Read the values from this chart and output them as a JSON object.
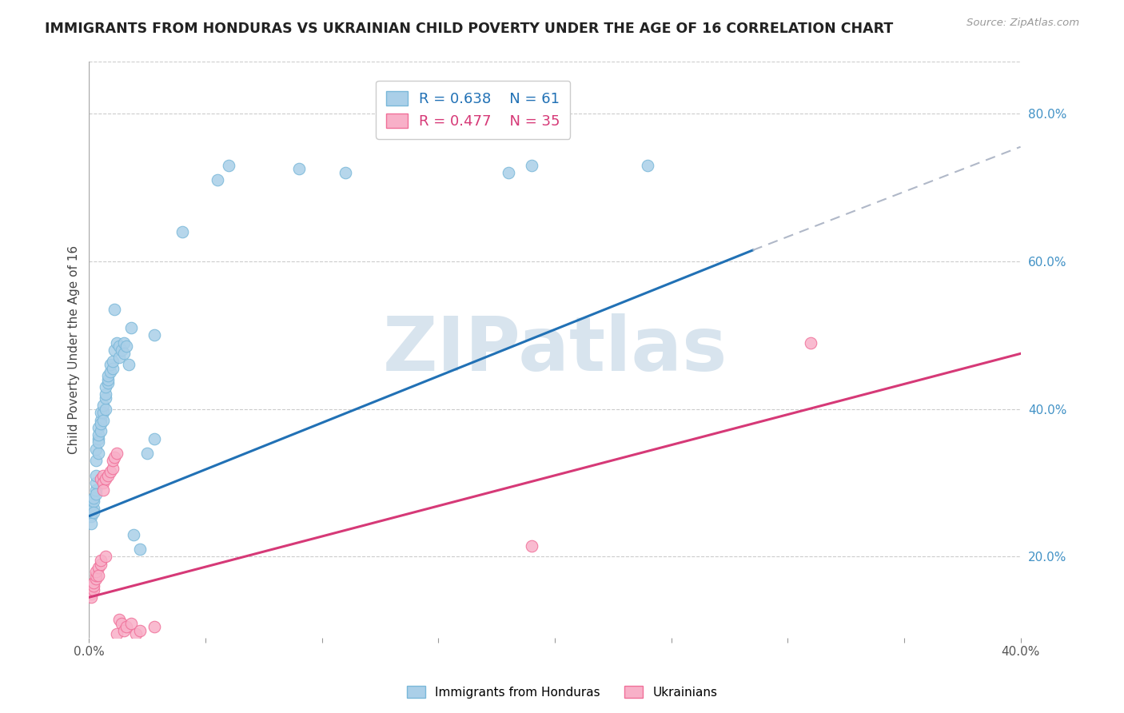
{
  "title": "IMMIGRANTS FROM HONDURAS VS UKRAINIAN CHILD POVERTY UNDER THE AGE OF 16 CORRELATION CHART",
  "source": "Source: ZipAtlas.com",
  "ylabel": "Child Poverty Under the Age of 16",
  "xlim": [
    0.0,
    0.4
  ],
  "ylim": [
    0.09,
    0.87
  ],
  "xticks": [
    0.0,
    0.05,
    0.1,
    0.15,
    0.2,
    0.25,
    0.3,
    0.35,
    0.4
  ],
  "xticklabels": [
    "0.0%",
    "",
    "",
    "",
    "",
    "",
    "",
    "",
    "40.0%"
  ],
  "yticks_right": [
    0.2,
    0.4,
    0.6,
    0.8
  ],
  "ytick_right_labels": [
    "20.0%",
    "40.0%",
    "60.0%",
    "80.0%"
  ],
  "blue_color": "#7ab8d9",
  "blue_fill": "#aacfe8",
  "pink_color": "#f07099",
  "pink_fill": "#f8b0c8",
  "blue_line_color": "#2171b5",
  "pink_line_color": "#d63977",
  "dashed_line_color": "#b0b8c8",
  "legend_R1": "R = 0.638",
  "legend_N1": "N = 61",
  "legend_R2": "R = 0.477",
  "legend_N2": "N = 35",
  "watermark": "ZIPatlas",
  "watermark_color": "#d8e4ee",
  "background_color": "#ffffff",
  "blue_scatter": [
    [
      0.001,
      0.26
    ],
    [
      0.001,
      0.27
    ],
    [
      0.001,
      0.255
    ],
    [
      0.001,
      0.245
    ],
    [
      0.002,
      0.265
    ],
    [
      0.002,
      0.275
    ],
    [
      0.002,
      0.28
    ],
    [
      0.002,
      0.26
    ],
    [
      0.003,
      0.29
    ],
    [
      0.003,
      0.3
    ],
    [
      0.003,
      0.31
    ],
    [
      0.003,
      0.285
    ],
    [
      0.003,
      0.33
    ],
    [
      0.003,
      0.345
    ],
    [
      0.004,
      0.36
    ],
    [
      0.004,
      0.34
    ],
    [
      0.004,
      0.375
    ],
    [
      0.004,
      0.355
    ],
    [
      0.004,
      0.365
    ],
    [
      0.005,
      0.37
    ],
    [
      0.005,
      0.385
    ],
    [
      0.005,
      0.395
    ],
    [
      0.005,
      0.38
    ],
    [
      0.006,
      0.395
    ],
    [
      0.006,
      0.405
    ],
    [
      0.006,
      0.385
    ],
    [
      0.007,
      0.4
    ],
    [
      0.007,
      0.415
    ],
    [
      0.007,
      0.42
    ],
    [
      0.007,
      0.43
    ],
    [
      0.008,
      0.435
    ],
    [
      0.008,
      0.44
    ],
    [
      0.008,
      0.445
    ],
    [
      0.009,
      0.45
    ],
    [
      0.009,
      0.46
    ],
    [
      0.01,
      0.455
    ],
    [
      0.01,
      0.465
    ],
    [
      0.011,
      0.535
    ],
    [
      0.011,
      0.48
    ],
    [
      0.012,
      0.49
    ],
    [
      0.013,
      0.485
    ],
    [
      0.013,
      0.47
    ],
    [
      0.014,
      0.48
    ],
    [
      0.015,
      0.49
    ],
    [
      0.015,
      0.475
    ],
    [
      0.016,
      0.485
    ],
    [
      0.017,
      0.46
    ],
    [
      0.018,
      0.51
    ],
    [
      0.019,
      0.23
    ],
    [
      0.022,
      0.21
    ],
    [
      0.025,
      0.34
    ],
    [
      0.028,
      0.5
    ],
    [
      0.028,
      0.36
    ],
    [
      0.04,
      0.64
    ],
    [
      0.055,
      0.71
    ],
    [
      0.06,
      0.73
    ],
    [
      0.09,
      0.725
    ],
    [
      0.11,
      0.72
    ],
    [
      0.18,
      0.72
    ],
    [
      0.19,
      0.73
    ],
    [
      0.24,
      0.73
    ]
  ],
  "pink_scatter": [
    [
      0.001,
      0.15
    ],
    [
      0.001,
      0.145
    ],
    [
      0.002,
      0.155
    ],
    [
      0.002,
      0.16
    ],
    [
      0.002,
      0.165
    ],
    [
      0.003,
      0.17
    ],
    [
      0.003,
      0.175
    ],
    [
      0.003,
      0.18
    ],
    [
      0.004,
      0.185
    ],
    [
      0.004,
      0.175
    ],
    [
      0.005,
      0.19
    ],
    [
      0.005,
      0.195
    ],
    [
      0.005,
      0.305
    ],
    [
      0.006,
      0.31
    ],
    [
      0.006,
      0.3
    ],
    [
      0.006,
      0.29
    ],
    [
      0.007,
      0.305
    ],
    [
      0.007,
      0.2
    ],
    [
      0.008,
      0.31
    ],
    [
      0.009,
      0.315
    ],
    [
      0.01,
      0.32
    ],
    [
      0.01,
      0.33
    ],
    [
      0.011,
      0.335
    ],
    [
      0.012,
      0.34
    ],
    [
      0.012,
      0.095
    ],
    [
      0.013,
      0.115
    ],
    [
      0.014,
      0.11
    ],
    [
      0.015,
      0.1
    ],
    [
      0.016,
      0.105
    ],
    [
      0.018,
      0.11
    ],
    [
      0.02,
      0.095
    ],
    [
      0.022,
      0.1
    ],
    [
      0.028,
      0.105
    ],
    [
      0.19,
      0.215
    ],
    [
      0.31,
      0.49
    ]
  ],
  "blue_line": [
    [
      0.0,
      0.255
    ],
    [
      0.285,
      0.615
    ]
  ],
  "blue_dashed_line": [
    [
      0.285,
      0.615
    ],
    [
      0.4,
      0.755
    ]
  ],
  "pink_line": [
    [
      0.0,
      0.145
    ],
    [
      0.4,
      0.475
    ]
  ]
}
